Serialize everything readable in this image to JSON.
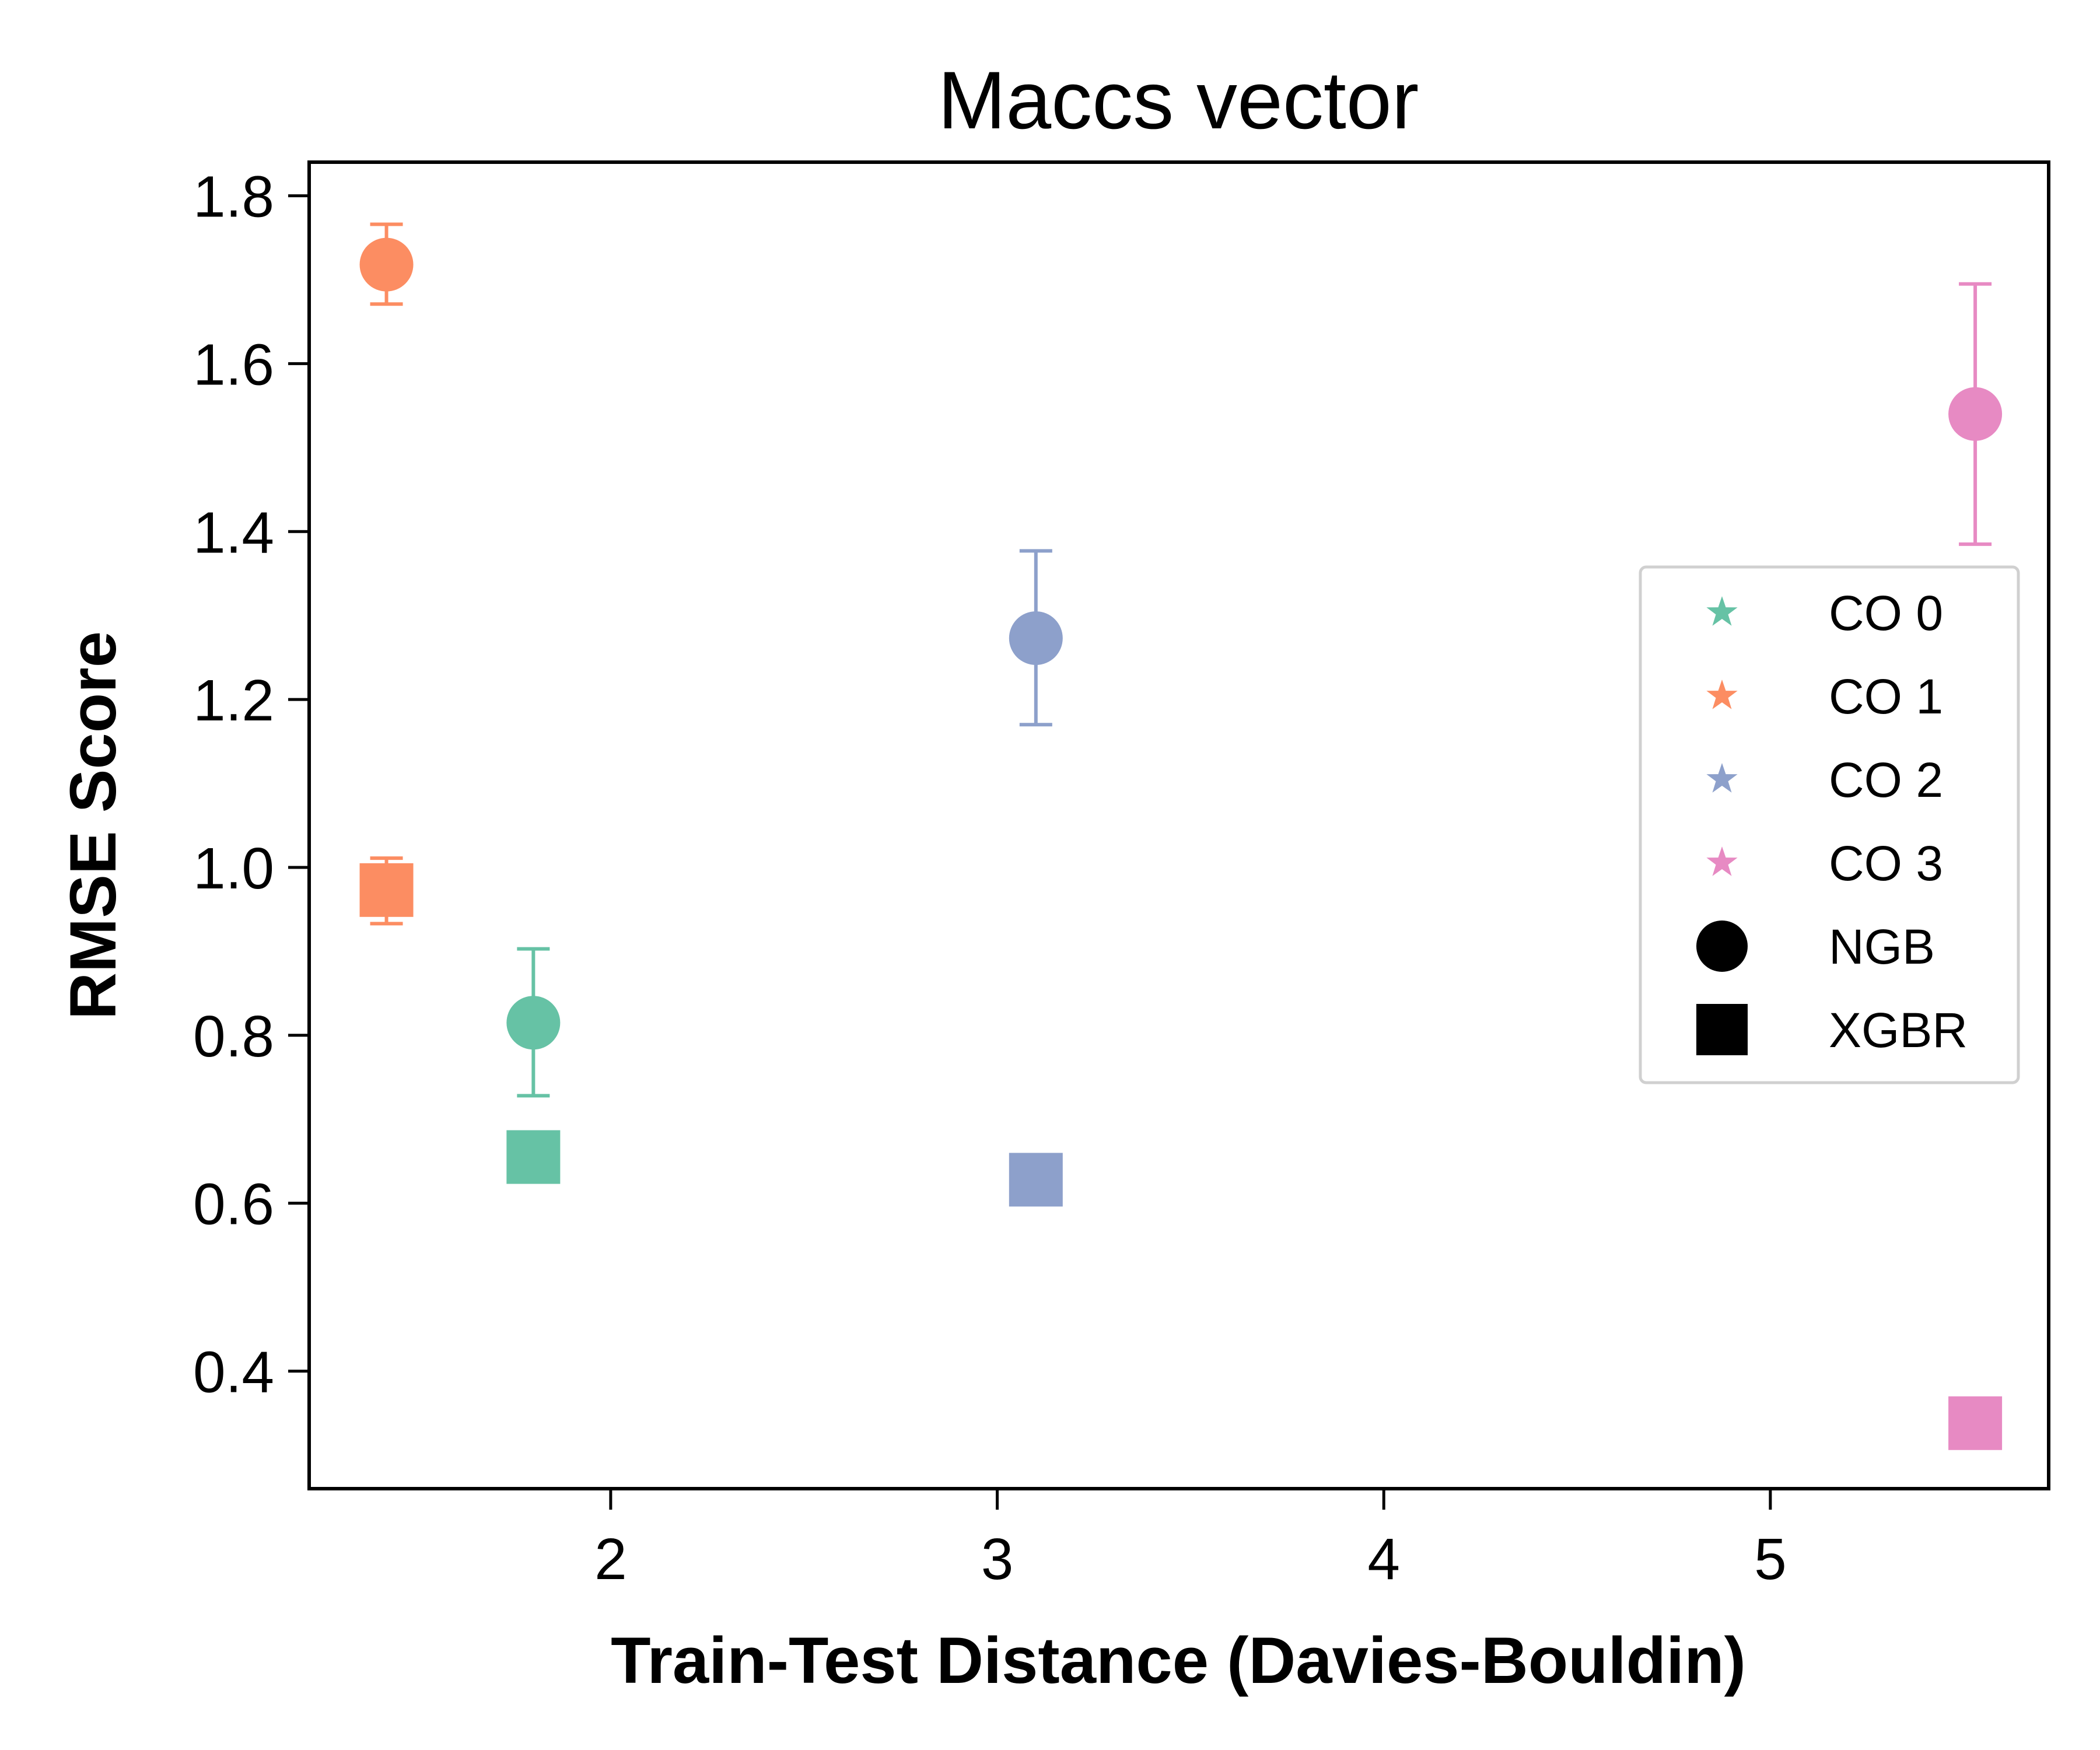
{
  "chart_data": {
    "type": "scatter",
    "title": "Maccs vector",
    "xlabel": "Train-Test Distance (Davies-Bouldin)",
    "ylabel": "RMSE Score",
    "xlim": [
      1.22,
      5.72
    ],
    "ylim": [
      0.26,
      1.84
    ],
    "xticks": [
      2,
      3,
      4,
      5
    ],
    "yticks": [
      0.4,
      0.6,
      0.8,
      1.0,
      1.2,
      1.4,
      1.6,
      1.8
    ],
    "xtick_labels": [
      "2",
      "3",
      "4",
      "5"
    ],
    "ytick_labels": [
      "0.4",
      "0.6",
      "0.8",
      "1.0",
      "1.2",
      "1.4",
      "1.6",
      "1.8"
    ],
    "grid": false,
    "legend_position": "center-right",
    "groups": [
      {
        "label": "CO 0",
        "color": "#66c2a5"
      },
      {
        "label": "CO 1",
        "color": "#fc8d62"
      },
      {
        "label": "CO 2",
        "color": "#8da0cb"
      },
      {
        "label": "CO 3",
        "color": "#e78ac3"
      }
    ],
    "models": [
      {
        "label": "NGB",
        "marker": "circle"
      },
      {
        "label": "XGBR",
        "marker": "square"
      }
    ],
    "points": [
      {
        "group": 0,
        "model": 0,
        "x": 1.8,
        "y": 0.815,
        "err_low": 0.728,
        "err_high": 0.903
      },
      {
        "group": 1,
        "model": 0,
        "x": 1.42,
        "y": 1.718,
        "err_low": 1.671,
        "err_high": 1.766
      },
      {
        "group": 2,
        "model": 0,
        "x": 3.1,
        "y": 1.273,
        "err_low": 1.17,
        "err_high": 1.377
      },
      {
        "group": 3,
        "model": 0,
        "x": 5.53,
        "y": 1.54,
        "err_low": 1.385,
        "err_high": 1.695
      },
      {
        "group": 0,
        "model": 1,
        "x": 1.8,
        "y": 0.655,
        "err_low": null,
        "err_high": null
      },
      {
        "group": 1,
        "model": 1,
        "x": 1.42,
        "y": 0.973,
        "err_low": 0.933,
        "err_high": 1.011
      },
      {
        "group": 2,
        "model": 1,
        "x": 3.1,
        "y": 0.628,
        "err_low": null,
        "err_high": null
      },
      {
        "group": 3,
        "model": 1,
        "x": 5.53,
        "y": 0.338,
        "err_low": null,
        "err_high": null
      }
    ]
  }
}
